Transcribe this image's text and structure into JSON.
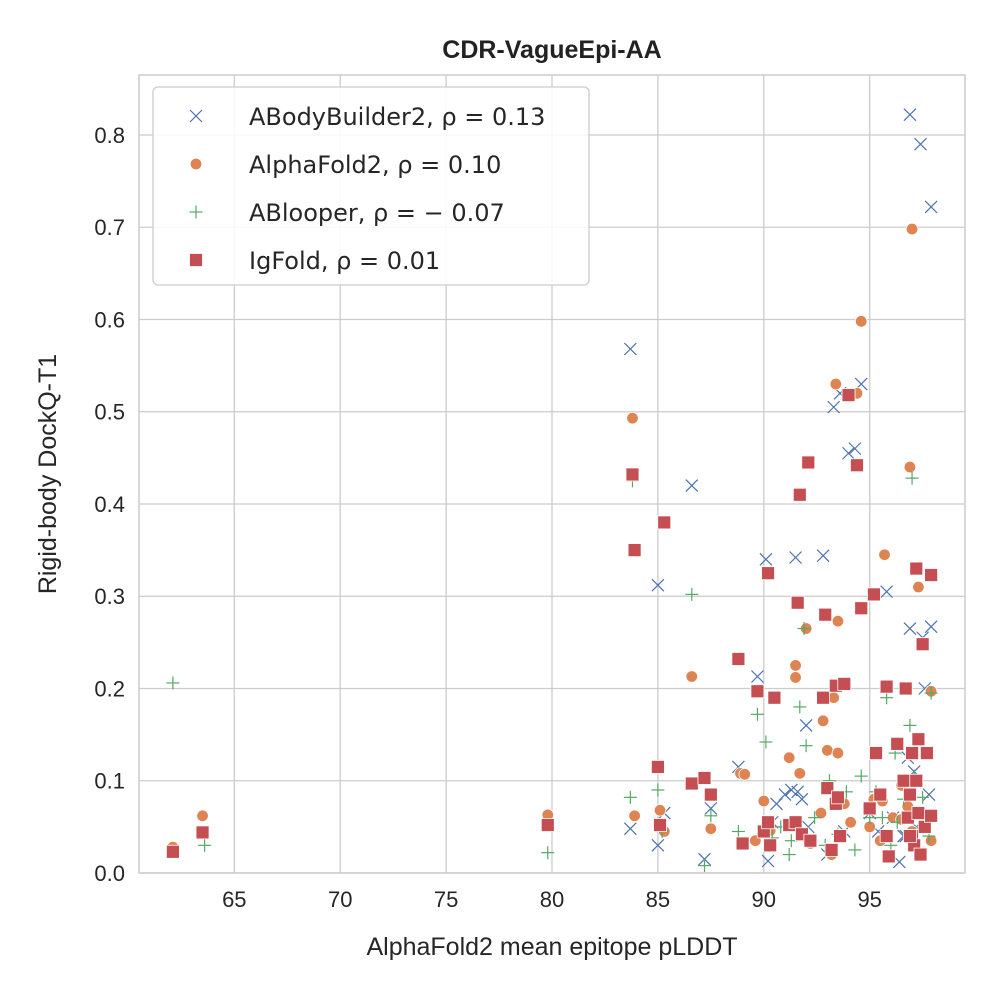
{
  "chart_data": {
    "type": "scatter",
    "title": "CDR-VagueEpi-AA",
    "xlabel": "AlphaFold2 mean epitope pLDDT",
    "ylabel": "Rigid-body DockQ-T1",
    "xlim": [
      60.5,
      99.5
    ],
    "ylim": [
      0.0,
      0.865
    ],
    "xticks": [
      65,
      70,
      75,
      80,
      85,
      90,
      95
    ],
    "yticks": [
      0.0,
      0.1,
      0.2,
      0.3,
      0.4,
      0.5,
      0.6,
      0.7,
      0.8
    ],
    "grid": true,
    "legend_position": "top-left",
    "series": [
      {
        "name": "ABodyBuilder2, ρ = 0.13",
        "marker": "x",
        "color": "#4c72b0",
        "points": [
          [
            83.7,
            0.568
          ],
          [
            86.6,
            0.42
          ],
          [
            85.0,
            0.312
          ],
          [
            83.7,
            0.048
          ],
          [
            85.0,
            0.03
          ],
          [
            85.3,
            0.065
          ],
          [
            87.2,
            0.015
          ],
          [
            87.5,
            0.07
          ],
          [
            88.8,
            0.115
          ],
          [
            89.7,
            0.213
          ],
          [
            90.1,
            0.34
          ],
          [
            90.2,
            0.013
          ],
          [
            90.4,
            0.055
          ],
          [
            90.6,
            0.075
          ],
          [
            91.0,
            0.085
          ],
          [
            91.3,
            0.09
          ],
          [
            91.5,
            0.342
          ],
          [
            91.6,
            0.088
          ],
          [
            91.8,
            0.08
          ],
          [
            92.0,
            0.16
          ],
          [
            92.1,
            0.05
          ],
          [
            92.8,
            0.344
          ],
          [
            93.0,
            0.02
          ],
          [
            93.3,
            0.505
          ],
          [
            93.6,
            0.52
          ],
          [
            93.8,
            0.045
          ],
          [
            94.0,
            0.455
          ],
          [
            94.3,
            0.46
          ],
          [
            94.6,
            0.53
          ],
          [
            95.0,
            0.065
          ],
          [
            95.4,
            0.045
          ],
          [
            95.8,
            0.305
          ],
          [
            96.1,
            0.06
          ],
          [
            96.4,
            0.012
          ],
          [
            96.7,
            0.04
          ],
          [
            96.9,
            0.822
          ],
          [
            96.9,
            0.265
          ],
          [
            97.1,
            0.11
          ],
          [
            97.2,
            0.05
          ],
          [
            97.4,
            0.79
          ],
          [
            97.5,
            0.255
          ],
          [
            97.6,
            0.2
          ],
          [
            97.8,
            0.085
          ],
          [
            97.9,
            0.722
          ],
          [
            97.9,
            0.267
          ],
          [
            96.8,
            0.125
          ],
          [
            96.6,
            0.04
          ]
        ]
      },
      {
        "name": "AlphaFold2, ρ = 0.10",
        "marker": "circle",
        "color": "#dd8452",
        "points": [
          [
            62.1,
            0.028
          ],
          [
            63.5,
            0.062
          ],
          [
            79.8,
            0.063
          ],
          [
            83.8,
            0.493
          ],
          [
            83.9,
            0.062
          ],
          [
            85.1,
            0.068
          ],
          [
            85.3,
            0.045
          ],
          [
            86.6,
            0.213
          ],
          [
            87.5,
            0.048
          ],
          [
            88.9,
            0.108
          ],
          [
            89.1,
            0.107
          ],
          [
            89.6,
            0.035
          ],
          [
            90.0,
            0.078
          ],
          [
            90.3,
            0.046
          ],
          [
            91.2,
            0.125
          ],
          [
            91.5,
            0.212
          ],
          [
            91.5,
            0.225
          ],
          [
            91.7,
            0.108
          ],
          [
            91.9,
            0.04
          ],
          [
            92.0,
            0.265
          ],
          [
            92.2,
            0.032
          ],
          [
            92.7,
            0.065
          ],
          [
            92.8,
            0.165
          ],
          [
            93.0,
            0.133
          ],
          [
            93.2,
            0.02
          ],
          [
            93.3,
            0.19
          ],
          [
            93.4,
            0.53
          ],
          [
            93.5,
            0.13
          ],
          [
            93.5,
            0.273
          ],
          [
            93.8,
            0.075
          ],
          [
            94.1,
            0.055
          ],
          [
            94.4,
            0.52
          ],
          [
            94.6,
            0.598
          ],
          [
            95.0,
            0.05
          ],
          [
            95.2,
            0.08
          ],
          [
            95.6,
            0.078
          ],
          [
            95.7,
            0.345
          ],
          [
            96.1,
            0.06
          ],
          [
            96.5,
            0.058
          ],
          [
            96.8,
            0.072
          ],
          [
            96.9,
            0.44
          ],
          [
            97.0,
            0.698
          ],
          [
            97.0,
            0.045
          ],
          [
            97.3,
            0.31
          ],
          [
            97.5,
            0.062
          ],
          [
            97.9,
            0.197
          ],
          [
            97.9,
            0.035
          ],
          [
            96.5,
            0.095
          ],
          [
            95.5,
            0.035
          ]
        ]
      },
      {
        "name": "ABlooper, ρ = − 0.07",
        "marker": "plus",
        "color": "#55a868",
        "points": [
          [
            62.1,
            0.206
          ],
          [
            63.6,
            0.03
          ],
          [
            79.8,
            0.022
          ],
          [
            83.7,
            0.082
          ],
          [
            83.8,
            0.425
          ],
          [
            85.0,
            0.09
          ],
          [
            85.2,
            0.045
          ],
          [
            86.6,
            0.302
          ],
          [
            87.2,
            0.008
          ],
          [
            87.5,
            0.062
          ],
          [
            88.8,
            0.045
          ],
          [
            89.7,
            0.172
          ],
          [
            90.1,
            0.142
          ],
          [
            90.4,
            0.038
          ],
          [
            90.8,
            0.05
          ],
          [
            91.2,
            0.02
          ],
          [
            91.3,
            0.035
          ],
          [
            91.7,
            0.18
          ],
          [
            91.9,
            0.265
          ],
          [
            92.0,
            0.138
          ],
          [
            92.4,
            0.06
          ],
          [
            92.9,
            0.03
          ],
          [
            93.1,
            0.1
          ],
          [
            93.5,
            0.042
          ],
          [
            93.9,
            0.088
          ],
          [
            94.3,
            0.025
          ],
          [
            94.6,
            0.105
          ],
          [
            95.0,
            0.06
          ],
          [
            95.3,
            0.088
          ],
          [
            95.6,
            0.06
          ],
          [
            95.8,
            0.19
          ],
          [
            96.0,
            0.03
          ],
          [
            96.3,
            0.055
          ],
          [
            96.6,
            0.08
          ],
          [
            96.9,
            0.16
          ],
          [
            97.0,
            0.428
          ],
          [
            97.1,
            0.105
          ],
          [
            97.3,
            0.14
          ],
          [
            97.5,
            0.082
          ],
          [
            97.6,
            0.052
          ],
          [
            97.8,
            0.04
          ],
          [
            97.9,
            0.195
          ],
          [
            96.2,
            0.13
          ]
        ]
      },
      {
        "name": "IgFold, ρ = 0.01",
        "marker": "square",
        "color": "#c44e52",
        "points": [
          [
            62.1,
            0.023
          ],
          [
            63.5,
            0.044
          ],
          [
            79.8,
            0.052
          ],
          [
            83.8,
            0.432
          ],
          [
            83.9,
            0.35
          ],
          [
            85.0,
            0.115
          ],
          [
            85.1,
            0.052
          ],
          [
            85.3,
            0.38
          ],
          [
            86.6,
            0.097
          ],
          [
            87.2,
            0.103
          ],
          [
            87.5,
            0.085
          ],
          [
            88.8,
            0.232
          ],
          [
            89.0,
            0.032
          ],
          [
            89.7,
            0.197
          ],
          [
            90.0,
            0.045
          ],
          [
            90.2,
            0.325
          ],
          [
            90.2,
            0.055
          ],
          [
            90.3,
            0.03
          ],
          [
            90.5,
            0.19
          ],
          [
            91.2,
            0.052
          ],
          [
            91.5,
            0.055
          ],
          [
            91.6,
            0.293
          ],
          [
            91.7,
            0.41
          ],
          [
            91.8,
            0.042
          ],
          [
            92.1,
            0.445
          ],
          [
            92.2,
            0.035
          ],
          [
            92.8,
            0.19
          ],
          [
            92.9,
            0.28
          ],
          [
            93.0,
            0.092
          ],
          [
            93.2,
            0.025
          ],
          [
            93.4,
            0.075
          ],
          [
            93.4,
            0.203
          ],
          [
            93.5,
            0.082
          ],
          [
            93.6,
            0.04
          ],
          [
            93.8,
            0.205
          ],
          [
            94.0,
            0.518
          ],
          [
            94.4,
            0.442
          ],
          [
            94.6,
            0.287
          ],
          [
            95.0,
            0.07
          ],
          [
            95.2,
            0.302
          ],
          [
            95.3,
            0.13
          ],
          [
            95.5,
            0.085
          ],
          [
            95.8,
            0.202
          ],
          [
            95.8,
            0.04
          ],
          [
            95.9,
            0.018
          ],
          [
            96.3,
            0.14
          ],
          [
            96.6,
            0.1
          ],
          [
            96.7,
            0.2
          ],
          [
            96.8,
            0.06
          ],
          [
            96.9,
            0.085
          ],
          [
            97.0,
            0.13
          ],
          [
            97.0,
            0.04
          ],
          [
            97.1,
            0.03
          ],
          [
            97.2,
            0.33
          ],
          [
            97.3,
            0.145
          ],
          [
            97.3,
            0.065
          ],
          [
            97.4,
            0.02
          ],
          [
            97.5,
            0.248
          ],
          [
            97.6,
            0.05
          ],
          [
            97.7,
            0.13
          ],
          [
            97.9,
            0.323
          ],
          [
            97.9,
            0.062
          ],
          [
            96.9,
            0.04
          ],
          [
            97.2,
            0.1
          ]
        ]
      }
    ]
  }
}
